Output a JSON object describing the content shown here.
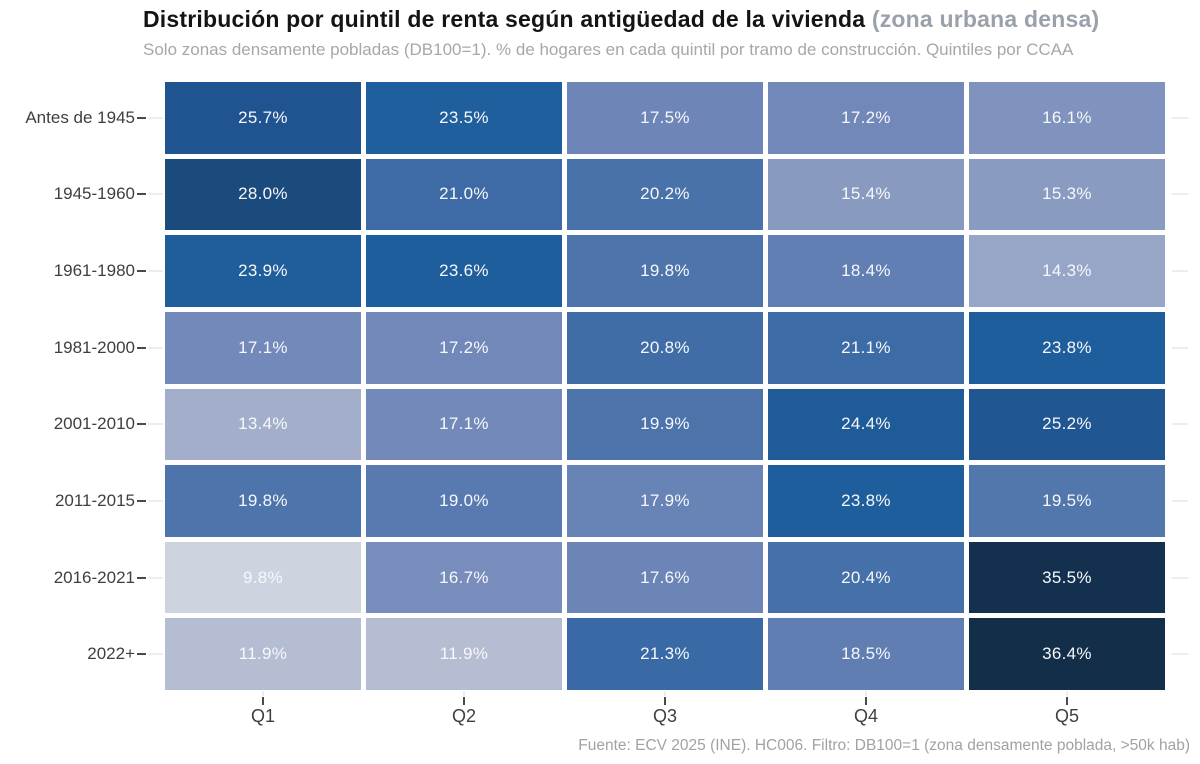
{
  "header": {
    "title_main": "Distribución por quintil de renta según antigüedad de la vivienda",
    "title_suffix": " (zona urbana densa)",
    "subtitle": "Solo zonas densamente pobladas (DB100=1). % de hogares en cada quintil por tramo de construcción. Quintiles por CCAA"
  },
  "footer": {
    "source": "Fuente: ECV 2025 (INE). HC006. Filtro: DB100=1 (zona densamente poblada, >50k hab)"
  },
  "chart_data": {
    "type": "heatmap",
    "title": "Distribución por quintil de renta según antigüedad de la vivienda (zona urbana densa)",
    "subtitle": "Solo zonas densamente pobladas (DB100=1). % de hogares en cada quintil por tramo de construcción. Quintiles por CCAA",
    "xlabel": "",
    "ylabel": "",
    "legend": "none",
    "grid": false,
    "rows": [
      "Antes de 1945",
      "1945-1960",
      "1961-1980",
      "1981-2000",
      "2001-2010",
      "2011-2015",
      "2016-2021",
      "2022+"
    ],
    "columns": [
      "Q1",
      "Q2",
      "Q3",
      "Q4",
      "Q5"
    ],
    "values": [
      [
        25.7,
        23.5,
        17.5,
        17.2,
        16.1
      ],
      [
        28.0,
        21.0,
        20.2,
        15.4,
        15.3
      ],
      [
        23.9,
        23.6,
        19.8,
        18.4,
        14.3
      ],
      [
        17.1,
        17.2,
        20.8,
        21.1,
        23.8
      ],
      [
        13.4,
        17.1,
        19.9,
        24.4,
        25.2
      ],
      [
        19.8,
        19.0,
        17.9,
        23.8,
        19.5
      ],
      [
        9.8,
        16.7,
        17.6,
        20.4,
        35.5
      ],
      [
        11.9,
        11.9,
        21.3,
        18.5,
        36.4
      ]
    ],
    "value_suffix": "%",
    "value_decimals": 1,
    "color_scale_stops": [
      {
        "value": 9.8,
        "color": "#cdd3df"
      },
      {
        "value": 13.4,
        "color": "#a3aeca"
      },
      {
        "value": 17.1,
        "color": "#7389b9"
      },
      {
        "value": 21.0,
        "color": "#3e6ba6"
      },
      {
        "value": 23.5,
        "color": "#1f5f9e"
      },
      {
        "value": 25.7,
        "color": "#205490"
      },
      {
        "value": 28.0,
        "color": "#1b4a7c"
      },
      {
        "value": 36.4,
        "color": "#122e49"
      }
    ],
    "cell_text_color": "#f7f8fb",
    "axis_text_color": "#3f3f3f",
    "tick_dark_color": "#4a4a4a",
    "tick_light_color": "#ededed",
    "gap_color": "#ffffff"
  }
}
